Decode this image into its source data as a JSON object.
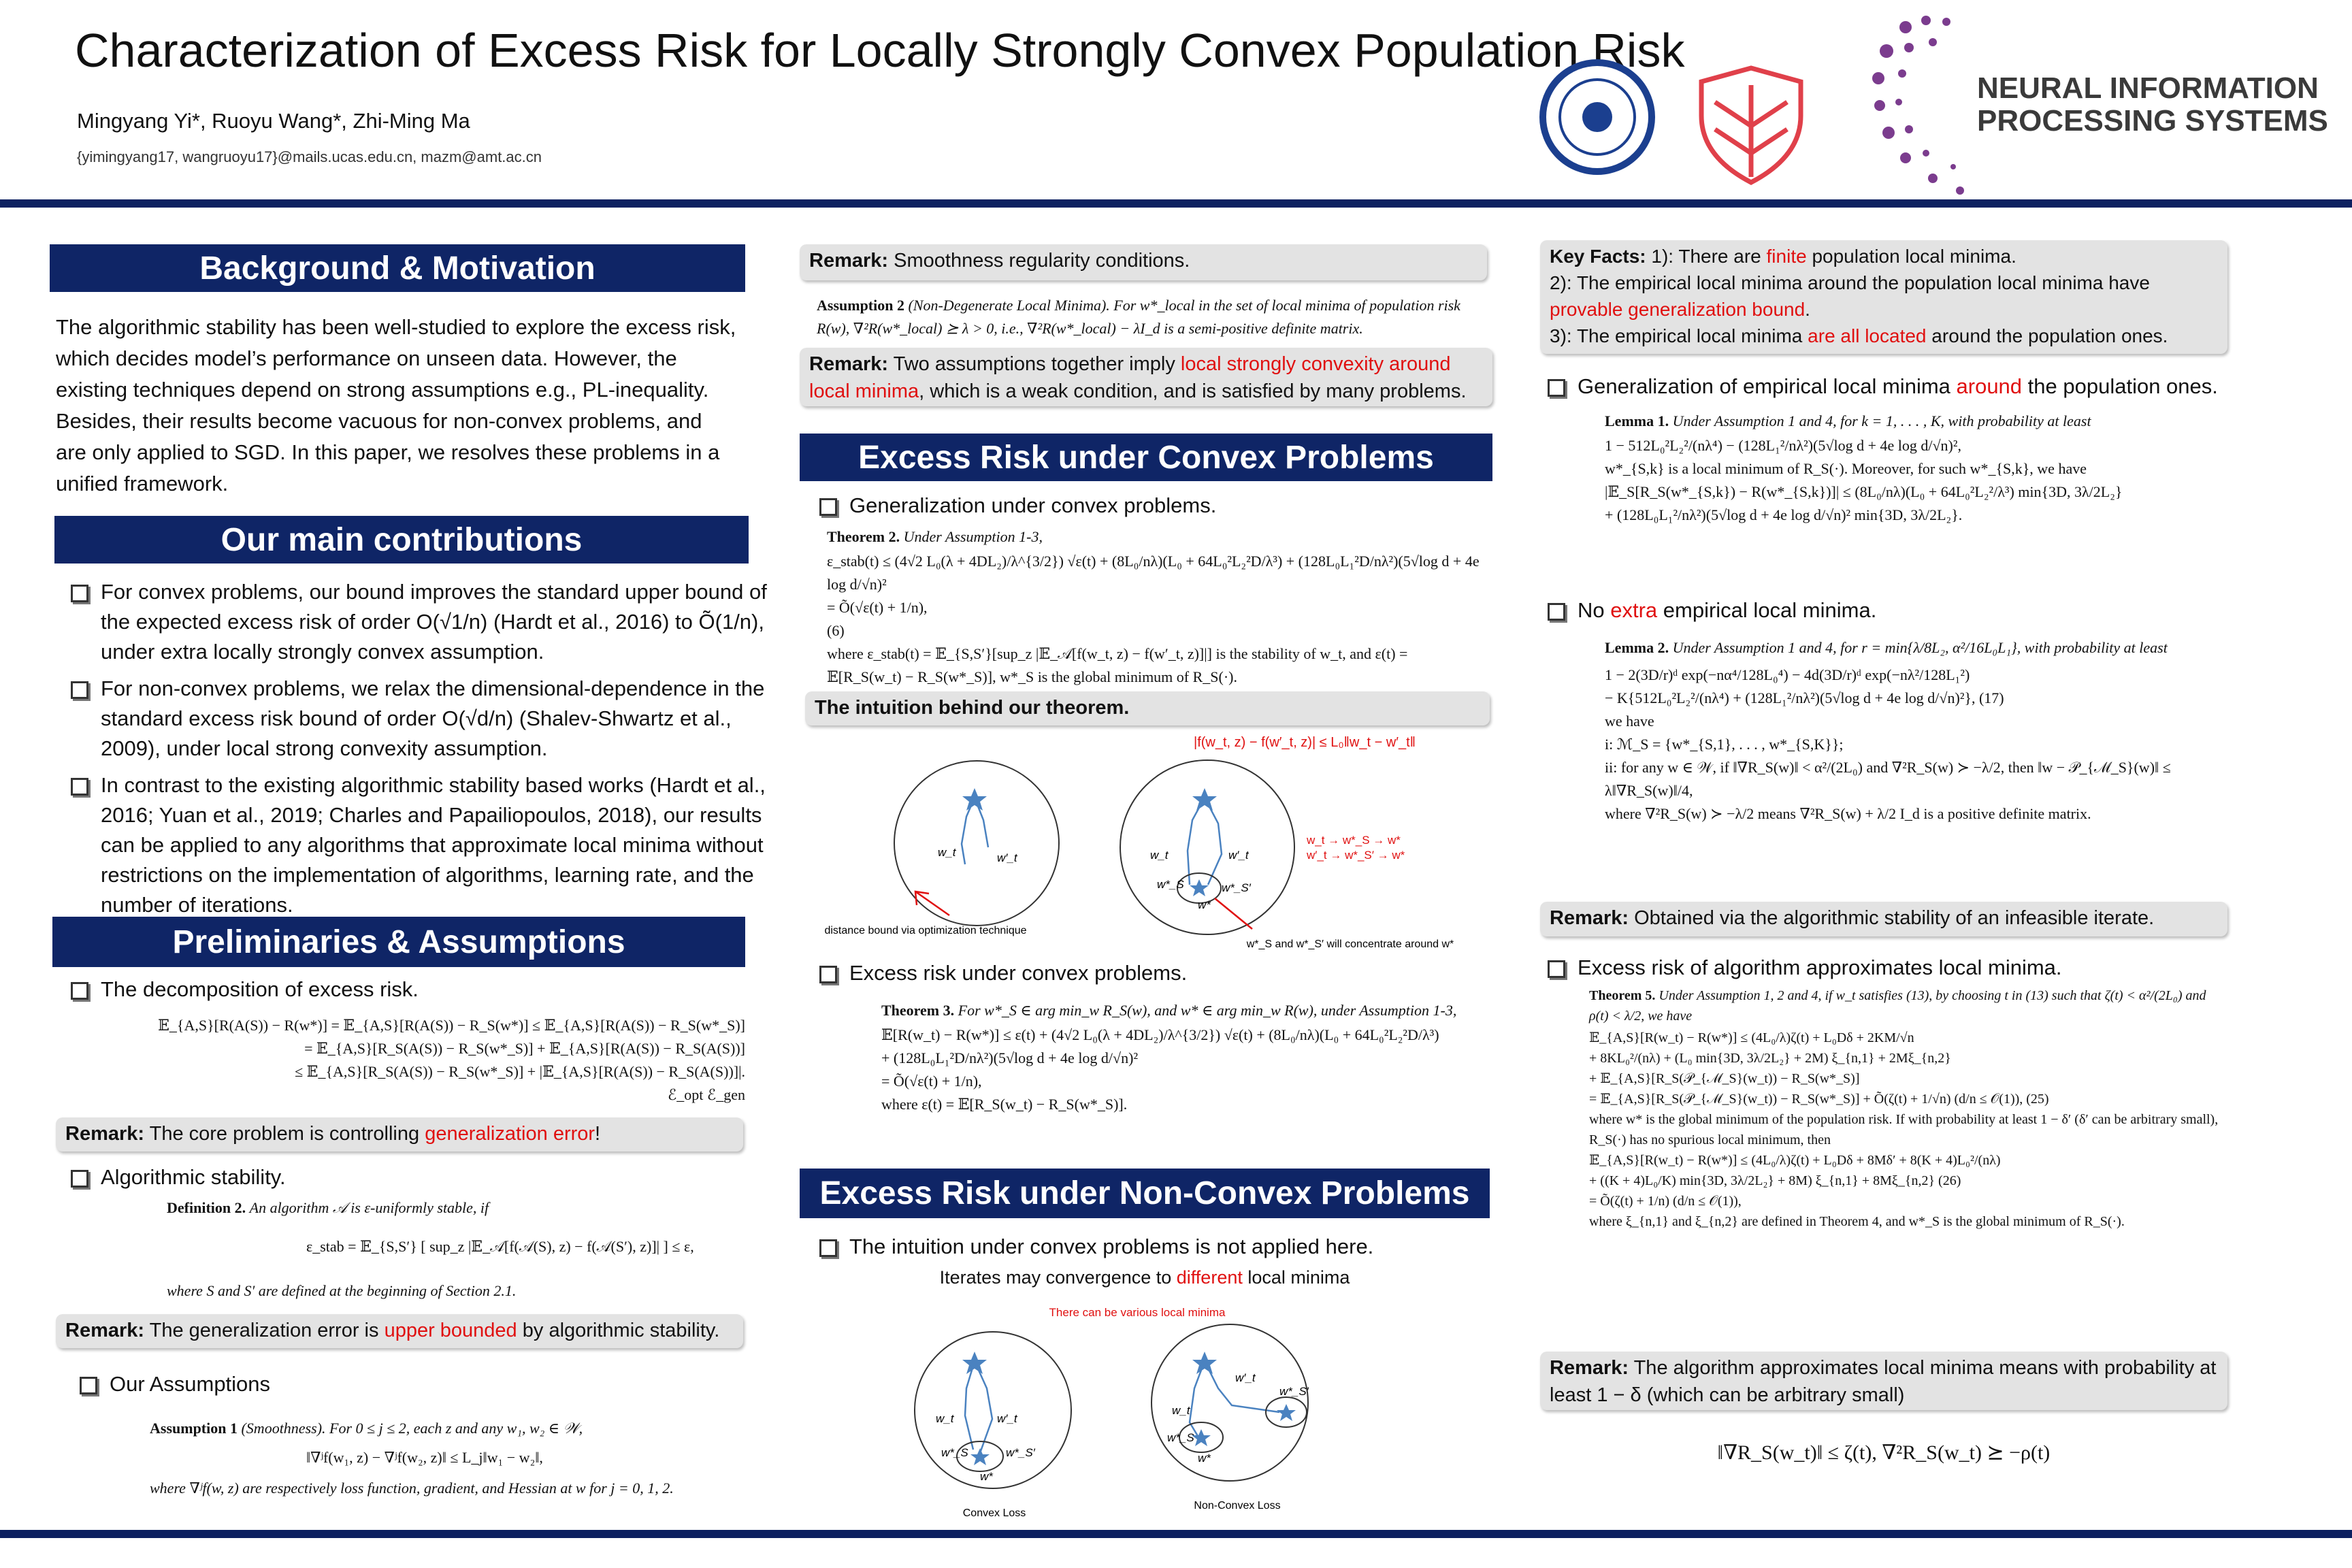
{
  "header": {
    "title": "Characterization of Excess Risk for Locally Strongly Convex Population Risk",
    "authors": "Mingyang Yi*, Ruoyu Wang*, Zhi-Ming Ma",
    "emails": "{yimingyang17, wangruoyu17}@mails.ucas.edu.cn, mazm@amt.ac.cn",
    "logo": [
      "NEURAL INFORMATION",
      "PROCESSING SYSTEMS"
    ]
  },
  "background": {
    "heading": "Background & Motivation",
    "text": "The algorithmic stability has been well-studied to explore the excess risk, which decides model’s performance on unseen data. However, the existing techniques depend on strong assumptions e.g., PL-inequality. Besides, their results become vacuous for non-convex problems, and are only applied to SGD. In this paper, we resolves these problems in a unified framework."
  },
  "contributions": {
    "heading": "Our main contributions",
    "items": [
      "For convex problems, our bound improves the standard upper bound of the expected excess risk of order O(√1/n) (Hardt et al., 2016) to Õ(1/n), under extra locally strongly convex assumption.",
      "For non-convex problems, we relax the dimensional-dependence in the standard excess risk bound of order O(√d/n) (Shalev-Shwartz et al., 2009), under local strong convexity assumption.",
      "In contrast to the existing algorithmic stability based works (Hardt et al., 2016; Yuan et al., 2019; Charles and Papailiopoulos, 2018), our results can be applied to any algorithms that approximate local minima without restrictions on the implementation of algorithms, learning rate, and the number of iterations."
    ]
  },
  "preliminaries": {
    "heading": "Preliminaries & Assumptions",
    "decomposition": "The decomposition of excess risk.",
    "decomposition_math": [
      "𝔼_{A,S}[R(A(S)) − R(w*)] = 𝔼_{A,S}[R(A(S)) − R_S(w*)] ≤ 𝔼_{A,S}[R(A(S)) − R_S(w*_S)]",
      "= 𝔼_{A,S}[R_S(A(S)) − R_S(w*_S)] + 𝔼_{A,S}[R(A(S)) − R_S(A(S))]",
      "≤ 𝔼_{A,S}[R_S(A(S)) − R_S(w*_S)] + |𝔼_{A,S}[R(A(S)) − R_S(A(S))]|.",
      "ℰ_opt                                ℰ_gen"
    ],
    "remark1": {
      "label": "Remark:",
      "parts": [
        "The core problem is controlling ",
        "generalization error",
        "!"
      ]
    },
    "stability": "Algorithmic stability.",
    "definition": [
      "Definition 2.",
      "An algorithm 𝒜 is ε-uniformly stable, if"
    ],
    "definition_math": "ε_stab = 𝔼_{S,S′} [ sup_z |𝔼_𝒜[f(𝒜(S), z) − f(𝒜(S′), z)]| ] ≤ ε,",
    "definition_where": "where S and S′ are defined at the beginning of Section 2.1.",
    "remark2": {
      "label": "Remark:",
      "parts": [
        "The generalization error is ",
        "upper bounded",
        " by algorithmic stability."
      ]
    },
    "assumptions": "Our Assumptions",
    "assumption1": [
      "Assumption 1",
      "(Smoothness).  For 0 ≤ j ≤ 2, each z and any w₁, w₂ ∈ 𝒲,"
    ],
    "assumption1_math": "‖∇ʲf(w₁, z) − ∇ʲf(w₂, z)‖ ≤ L_j‖w₁ − w₂‖,",
    "assumption1_where": "where ∇ʲf(w, z) are respectively loss function, gradient, and Hessian at w for j = 0, 1, 2."
  },
  "middle": {
    "remark0": {
      "label": "Remark:",
      "parts": [
        "Smoothness regularity conditions."
      ]
    },
    "assumption2": [
      "Assumption 2",
      "(Non-Degenerate Local Minima).  For w*_local in the set of local minima of population risk R(w), ∇²R(w*_local) ⪰ λ > 0, i.e., ∇²R(w*_local) − λI_d is a semi-positive definite matrix."
    ],
    "remark1": {
      "label": "Remark:",
      "parts": [
        "Two assumptions together imply ",
        "local strongly convexity around local minima",
        ", which is a weak condition, and is satisfied by many  problems."
      ]
    },
    "convex_heading": "Excess Risk under Convex Problems",
    "generalization": "Generalization under convex problems.",
    "theorem2": [
      "Theorem 2.",
      "Under Assumption 1-3,"
    ],
    "theorem2_math": [
      "ε_stab(t) ≤ (4√2 L₀(λ + 4DL₂)/λ^{3/2}) √ε(t) + (8L₀/nλ)(L₀ + 64L₀²L₂²D/λ³) + (128L₀L₁²D/nλ²)(5√log d + 4e log d/√n)²",
      "= Õ(√ε(t) + 1/n),",
      "(6)",
      "where ε_stab(t) = 𝔼_{S,S′}[sup_z |𝔼_𝒜[f(w_t, z) − f(w′_t, z)]|] is the stability of w_t, and ε(t) = 𝔼[R_S(w_t) − R_S(w*_S)], w*_S is the global minimum of R_S(·)."
    ],
    "intuition": "The intuition behind our theorem.",
    "fig1": {
      "formula": "|f(w_t, z) − f(w′_t, z)| ≤ L₀‖w_t − w′_t‖",
      "w_t": "w_t",
      "w_t_prime": "w′_t",
      "w_S": "w*_S",
      "w_S_prime": "w*_S′",
      "w_star": "w*",
      "path1": "w_t → w*_S → w*",
      "path2": "w′_t → w*_S′ → w*",
      "caption_left": "distance bound via optimization technique",
      "caption_right": "w*_S and w*_S′ will concentrate around w*"
    },
    "excess": "Excess risk under convex problems.",
    "theorem3": [
      "Theorem 3.",
      "For w*_S ∈ arg min_w R_S(w), and w* ∈ arg min_w R(w), under Assumption 1-3,"
    ],
    "theorem3_math": [
      "𝔼[R(w_t) − R(w*)] ≤ ε(t) + (4√2 L₀(λ + 4DL₂)/λ^{3/2}) √ε(t) + (8L₀/nλ)(L₀ + 64L₀²L₂²D/λ³)",
      "+ (128L₀L₁²D/nλ²)(5√log d + 4e log d/√n)²",
      "= Õ(√ε(t) + 1/n),",
      "where ε(t) = 𝔼[R_S(w_t) − R_S(w*_S)]."
    ],
    "nonconvex_heading": "Excess Risk under Non-Convex Problems",
    "nonconvex_intuition": "The intuition under convex problems is not applied here.",
    "iterates": [
      "Iterates may convergence to ",
      "different",
      " local minima"
    ],
    "fig2": {
      "various": "There can be various local minima",
      "w_t": "w_t",
      "w_t_prime": "w′_t",
      "w_S": "w*_S",
      "w_S_prime": "w*_S′",
      "w_star": "w*",
      "convex": "Convex Loss",
      "nonconvex": "Non-Convex Loss"
    }
  },
  "right": {
    "keyfacts": {
      "label": "Key Facts:",
      "lines": [
        [
          " 1): There are ",
          "finite",
          " population local minima."
        ],
        [
          "2): The empirical local minima around the population local minima have ",
          "provable generalization bound",
          "."
        ],
        [
          "3): The empirical local minima ",
          "are all located",
          " around the population ones."
        ]
      ]
    },
    "bullet1": [
      "Generalization of empirical local minima ",
      "around",
      " the population ones."
    ],
    "lemma1": [
      "Lemma 1.",
      "Under Assumption 1 and 4, for k = 1, . . . , K, with probability at least"
    ],
    "lemma1_math": [
      "1 − 512L₀²L₂²/(nλ⁴) − (128L₁²/nλ²)(5√log d + 4e log d/√n)²,",
      "w*_{S,k} is a local minimum of R_S(·). Moreover, for such w*_{S,k}, we have",
      "|𝔼_S[R_S(w*_{S,k}) − R(w*_{S,k})]| ≤ (8L₀/nλ)(L₀ + 64L₀²L₂²/λ³) min{3D, 3λ/2L₂}",
      "+ (128L₀L₁²/nλ²)(5√log d + 4e log d/√n)² min{3D, 3λ/2L₂}."
    ],
    "bullet2": [
      "No ",
      "extra",
      " empirical local minima."
    ],
    "lemma2": [
      "Lemma 2.",
      "Under Assumption 1 and 4, for r = min{λ/8L₂, α²/16L₀L₁}, with probability at least"
    ],
    "lemma2_math": [
      "1 − 2(3D/r)ᵈ exp(−nα⁴/128L₀⁴) − 4d(3D/r)ᵈ exp(−nλ²/128L₁²)",
      "− K{512L₀²L₂²/(nλ⁴) + (128L₁²/nλ²)(5√log d + 4e log d/√n)²},      (17)",
      "we have",
      "i: ℳ_S = {w*_{S,1}, . . . , w*_{S,K}};",
      "ii: for any w ∈ 𝒲, if ‖∇R_S(w)‖ < α²/(2L₀) and ∇²R_S(w) ≻ −λ/2, then ‖w − 𝒫_{ℳ_S}(w)‖ ≤ λ‖∇R_S(w)‖/4,",
      "where ∇²R_S(w) ≻ −λ/2 means ∇²R_S(w) + λ/2 I_d is a positive definite matrix."
    ],
    "remark1": {
      "label": "Remark:",
      "parts": [
        " Obtained via the algorithmic stability  of an infeasible iterate."
      ]
    },
    "bullet3": "Excess risk of algorithm approximates local minima.",
    "theorem5": [
      "Theorem 5.",
      "Under Assumption 1, 2 and 4, if w_t satisfies (13), by choosing t in (13) such that ζ(t) < α²/(2L₀) and ρ(t) < λ/2, we have"
    ],
    "theorem5_math": [
      "𝔼_{A,S}[R(w_t) − R(w*)] ≤ (4L₀/λ)ζ(t) + L₀Dδ + 2KM/√n",
      "+ 8KL₀²/(nλ) + (L₀ min{3D, 3λ/2L₂} + 2M) ξ_{n,1} + 2Mξ_{n,2}",
      "+ 𝔼_{A,S}[R_S(𝒫_{ℳ_S}(w_t)) − R_S(w*_S)]",
      "= 𝔼_{A,S}[R_S(𝒫_{ℳ_S}(w_t)) − R_S(w*_S)] + Õ(ζ(t) + 1/√n)      (d/n ≤ 𝒪(1)),      (25)",
      "where w* is the global minimum of the population risk. If with probability at least 1 − δ′ (δ′ can be arbitrary small), R_S(·) has no spurious local minimum, then",
      "𝔼_{A,S}[R(w_t) − R(w*)] ≤ (4L₀/λ)ζ(t) + L₀Dδ + 8Mδ′ + 8(K + 4)L₀²/(nλ)",
      "+ ((K + 4)L₀/K) min{3D, 3λ/2L₂} + 8M) ξ_{n,1} + 8Mξ_{n,2}      (26)",
      "= Õ(ζ(t) + 1/n)      (d/n ≤ 𝒪(1)),",
      "where ξ_{n,1} and ξ_{n,2} are defined in Theorem 4, and w*_S is the global minimum of R_S(·)."
    ],
    "remark2": {
      "label": "Remark:",
      "parts": [
        " The algorithm approximates local minima means with probability at least 1  − δ (which can be arbitrary small)"
      ]
    },
    "final_math": "‖∇R_S(w_t)‖ ≤ ζ(t),       ∇²R_S(w_t) ⪰ −ρ(t)"
  }
}
